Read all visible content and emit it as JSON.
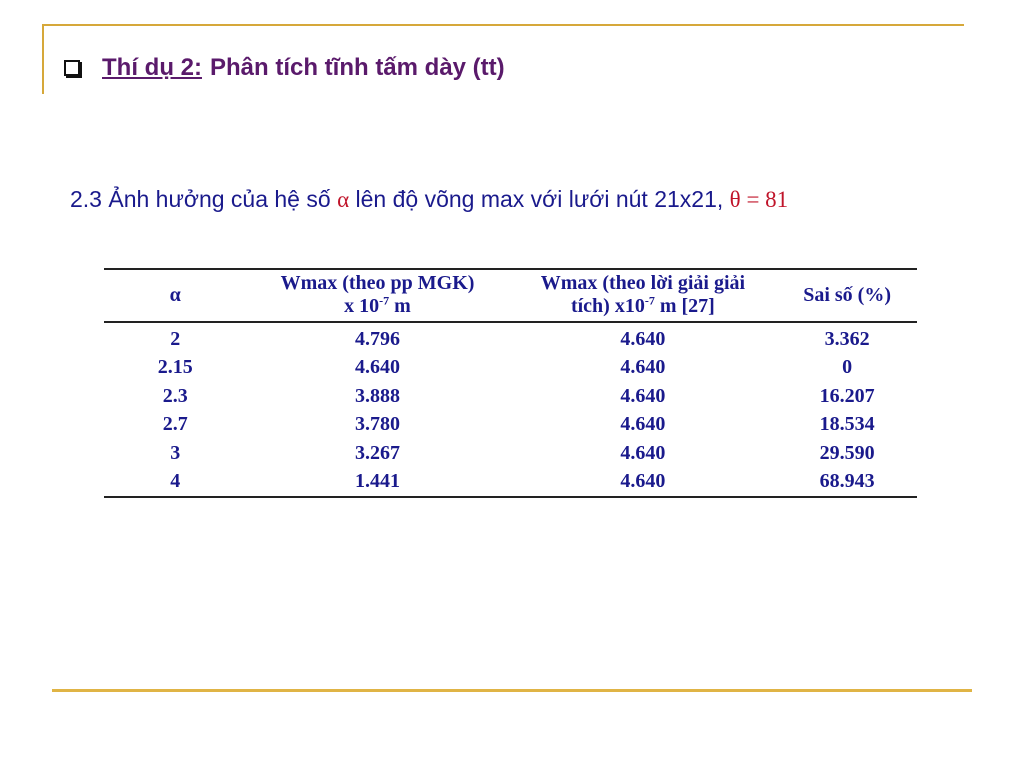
{
  "title": {
    "label": "Thí dụ 2:",
    "text": "Phân tích tĩnh tấm dày (tt)"
  },
  "subtitle": {
    "text": "2.3  Ảnh hưởng của hệ số",
    "alpha": "α",
    "middle": "lên độ võng max với lưới nút 21x21,",
    "theta": "θ = 81"
  },
  "table": {
    "headers": {
      "col1": "α",
      "col2_line1": "Wmax (theo pp MGK)",
      "col2_line2_pre": "x 10",
      "col2_exp": "-7",
      "col2_line2_post": " m",
      "col3_line1": "Wmax (theo lời giải giải",
      "col3_line2_pre": "tích)  x10",
      "col3_exp": "-7",
      "col3_line2_post": " m [27]",
      "col4": "Sai số (%)"
    },
    "rows": [
      [
        "2",
        "4.796",
        "4.640",
        "3.362"
      ],
      [
        "2.15",
        "4.640",
        "4.640",
        "0"
      ],
      [
        "2.3",
        "3.888",
        "4.640",
        "16.207"
      ],
      [
        "2.7",
        "3.780",
        "4.640",
        "18.534"
      ],
      [
        "3",
        "3.267",
        "4.640",
        "29.590"
      ],
      [
        "4",
        "1.441",
        "4.640",
        "68.943"
      ]
    ]
  }
}
